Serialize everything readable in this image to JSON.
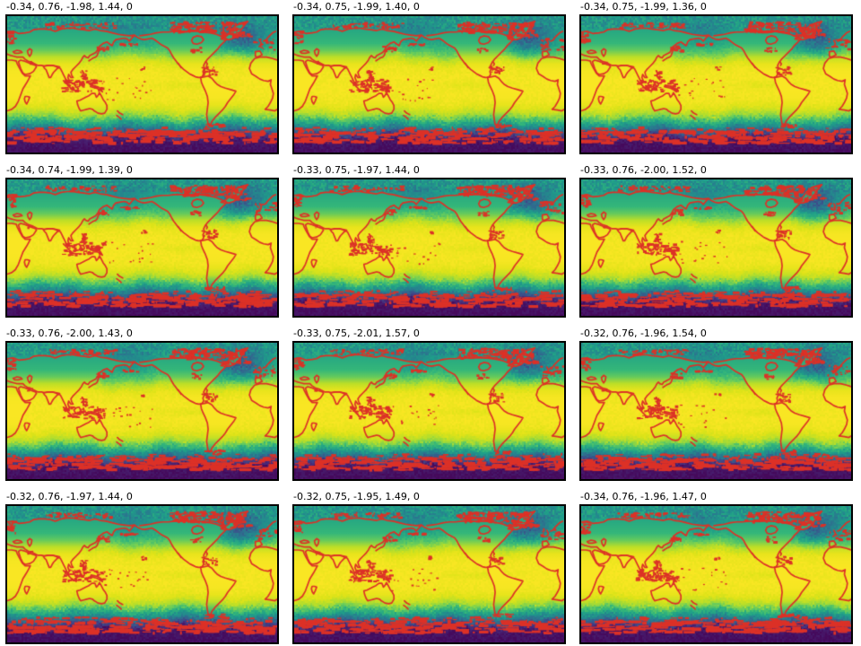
{
  "figure": {
    "background": "#ffffff",
    "title_color": "#000000",
    "frame_color": "#000000"
  },
  "chart_data": {
    "type": "heatmap",
    "layout": {
      "rows": 4,
      "cols": 3,
      "grid": false,
      "legend": "none",
      "projection": "equirectangular world map, Pacific-centered (~20E to 380E)"
    },
    "colormap": "viridis",
    "mask_color": "#dc3127",
    "field_summary": "Global field: yellow (high) across tropics, green-teal mid-latitudes, dark blue-purple (low) toward poles; red mask on coastlines, land outlines and polar sea-ice regions",
    "panels": [
      {
        "title": "-0.34, 0.76, -1.98, 1.44, 0",
        "values": [
          -0.34,
          0.76,
          -1.98,
          1.44,
          0
        ]
      },
      {
        "title": "-0.34, 0.75, -1.99, 1.40, 0",
        "values": [
          -0.34,
          0.75,
          -1.99,
          1.4,
          0
        ]
      },
      {
        "title": "-0.34, 0.75, -1.99, 1.36, 0",
        "values": [
          -0.34,
          0.75,
          -1.99,
          1.36,
          0
        ]
      },
      {
        "title": "-0.34, 0.74, -1.99, 1.39, 0",
        "values": [
          -0.34,
          0.74,
          -1.99,
          1.39,
          0
        ]
      },
      {
        "title": "-0.33, 0.75, -1.97, 1.44, 0",
        "values": [
          -0.33,
          0.75,
          -1.97,
          1.44,
          0
        ]
      },
      {
        "title": "-0.33, 0.76, -2.00, 1.52, 0",
        "values": [
          -0.33,
          0.76,
          -2.0,
          1.52,
          0
        ]
      },
      {
        "title": "-0.33, 0.76, -2.00, 1.43, 0",
        "values": [
          -0.33,
          0.76,
          -2.0,
          1.43,
          0
        ]
      },
      {
        "title": "-0.33, 0.75, -2.01, 1.57, 0",
        "values": [
          -0.33,
          0.75,
          -2.01,
          1.57,
          0
        ]
      },
      {
        "title": "-0.32, 0.76, -1.96, 1.54, 0",
        "values": [
          -0.32,
          0.76,
          -1.96,
          1.54,
          0
        ]
      },
      {
        "title": "-0.32, 0.76, -1.97, 1.44, 0",
        "values": [
          -0.32,
          0.76,
          -1.97,
          1.44,
          0
        ]
      },
      {
        "title": "-0.32, 0.75, -1.95, 1.49, 0",
        "values": [
          -0.32,
          0.75,
          -1.95,
          1.49,
          0
        ]
      },
      {
        "title": "-0.34, 0.76, -1.96, 1.47, 0",
        "values": [
          -0.34,
          0.76,
          -1.96,
          1.47,
          0
        ]
      }
    ]
  }
}
